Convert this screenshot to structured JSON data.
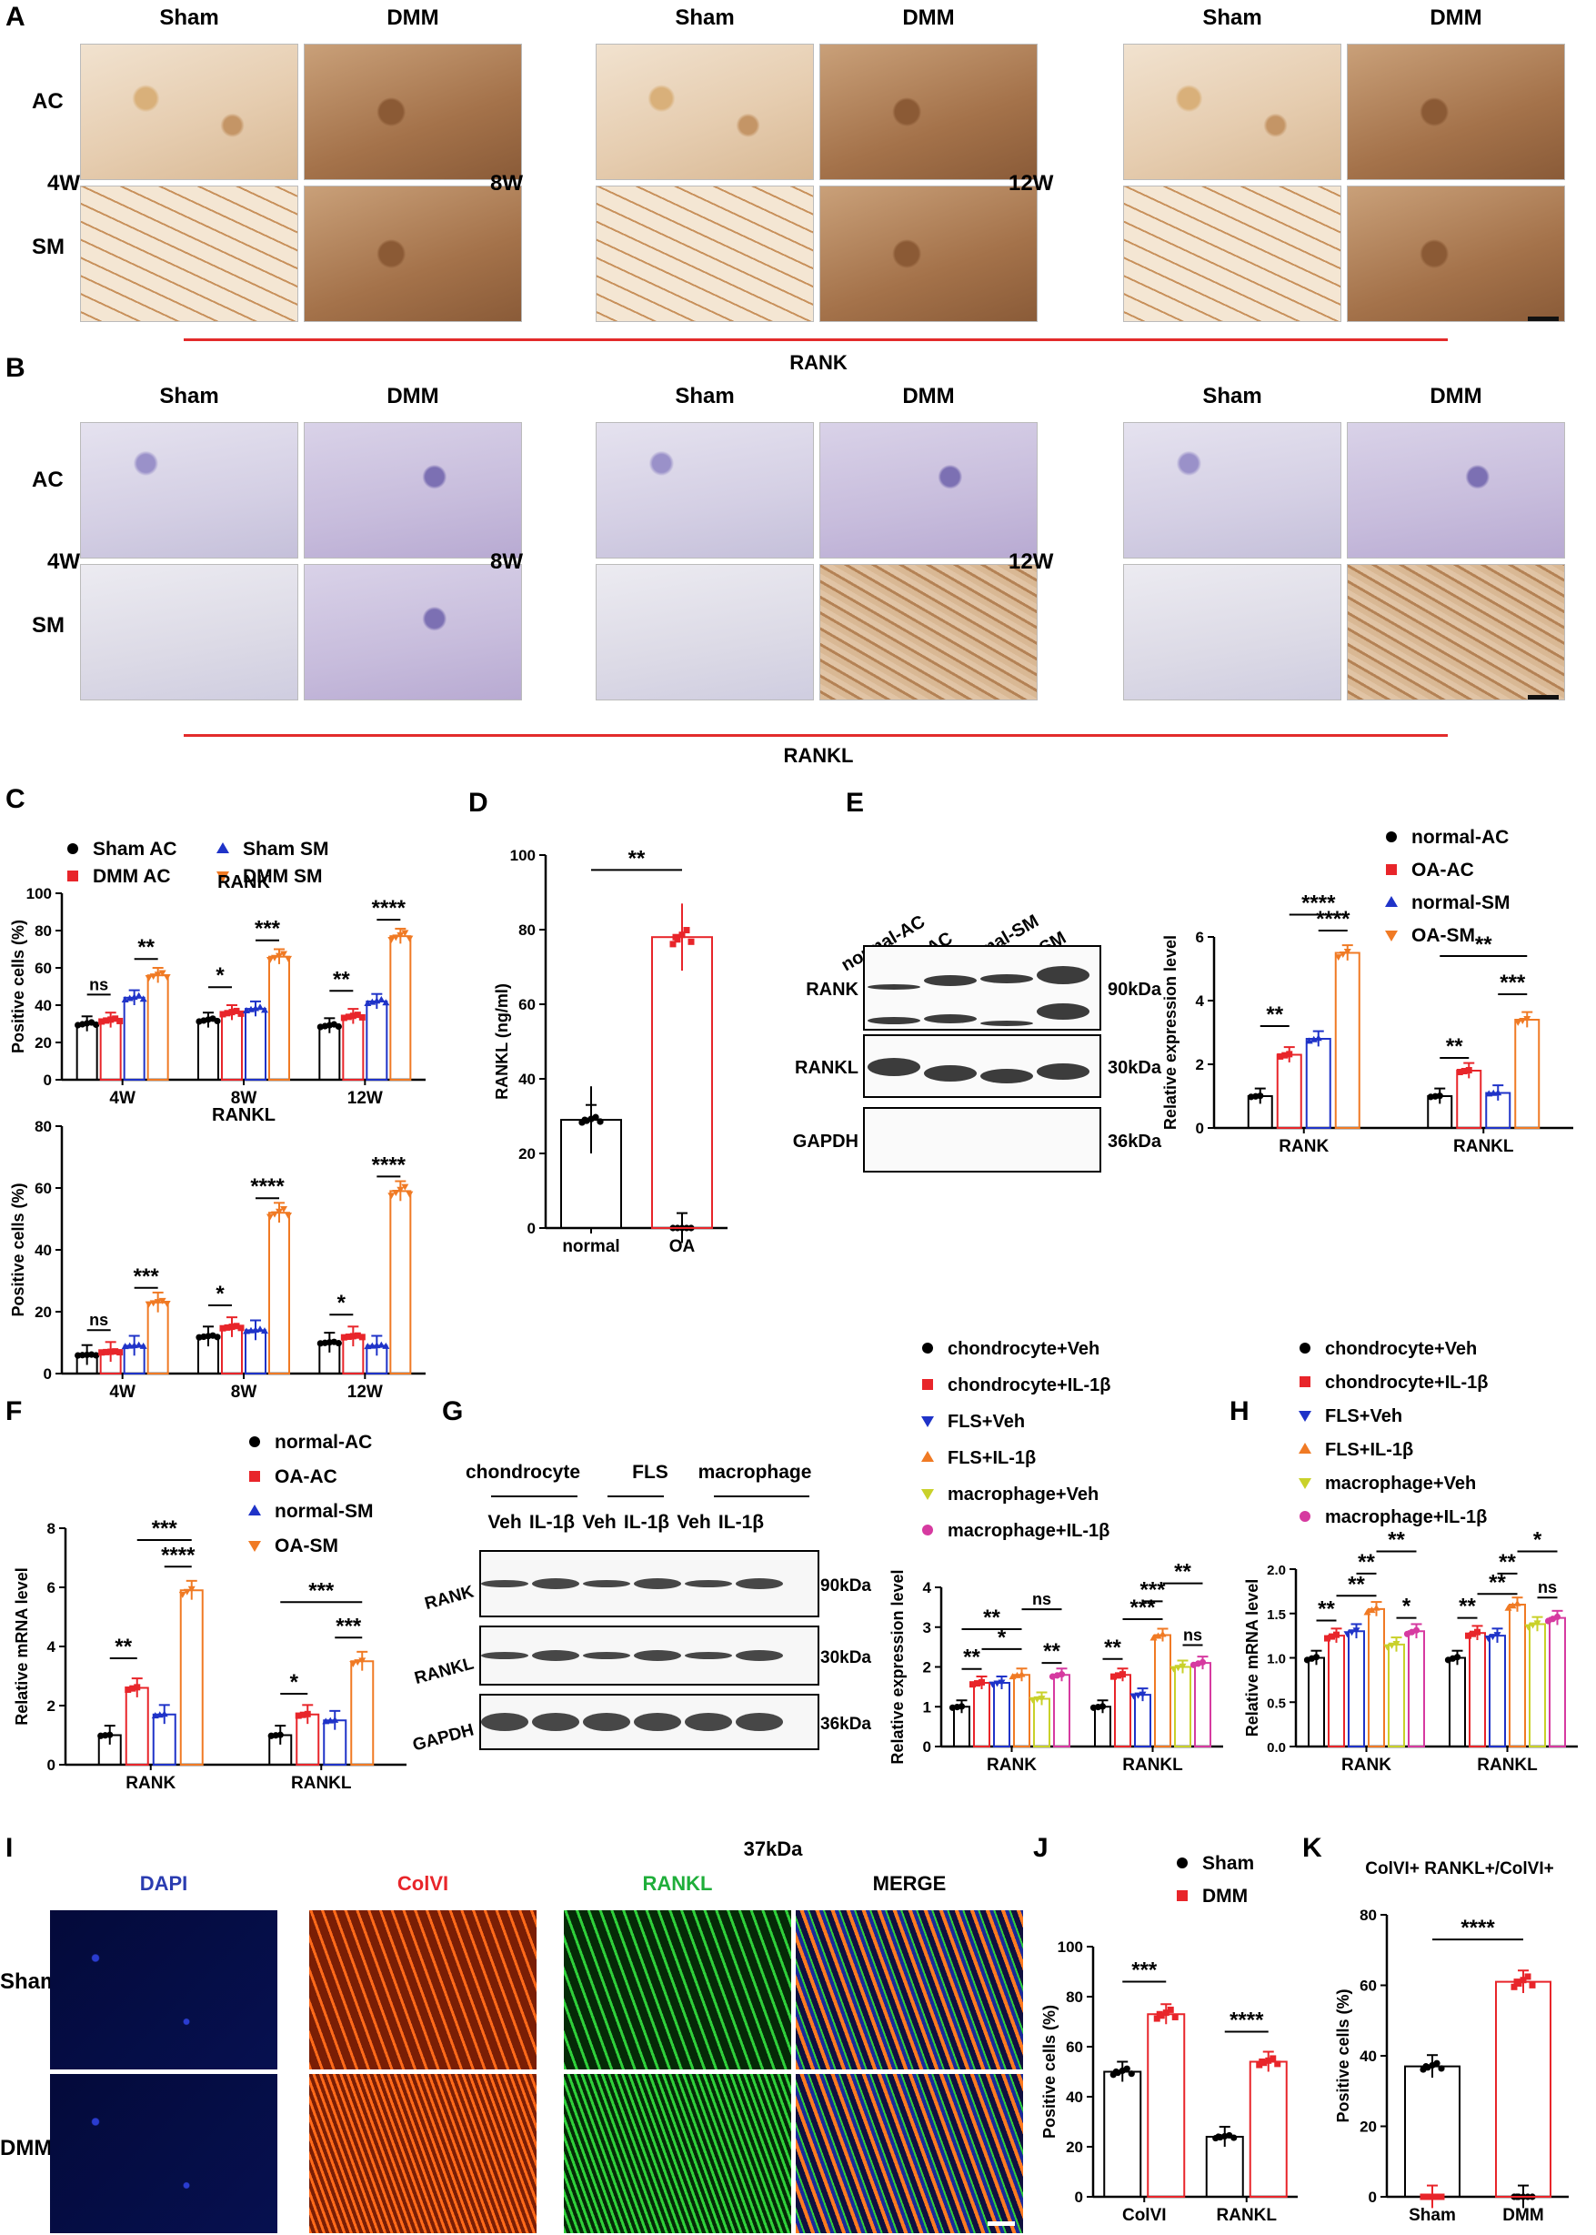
{
  "panels": {
    "A": "A",
    "B": "B",
    "C": "C",
    "D": "D",
    "E": "E",
    "F": "F",
    "G": "G",
    "H": "H",
    "I": "I",
    "J": "J",
    "K": "K"
  },
  "histology": {
    "col_headers": [
      "Sham",
      "DMM"
    ],
    "row_labels": [
      "AC",
      "SM"
    ],
    "timepoints": [
      "4W",
      "8W",
      "12W"
    ],
    "A_caption": "RANK",
    "B_caption": "RANKL"
  },
  "C": {
    "legend": [
      "Sham AC",
      "DMM AC",
      "Sham SM",
      "DMM SM"
    ],
    "ylabel": "Positive cells (%)",
    "categories": [
      "4W",
      "8W",
      "12W"
    ],
    "top": {
      "title": "RANK",
      "sig": [
        "ns",
        "**",
        "*",
        "***",
        "**",
        "****"
      ]
    },
    "bottom": {
      "title": "RANKL",
      "sig": [
        "ns",
        "***",
        "*",
        "****",
        "*",
        "****"
      ]
    }
  },
  "D": {
    "ylabel": "RANKL (ng/ml)",
    "categories": [
      "normal",
      "OA"
    ],
    "sig": "**"
  },
  "E": {
    "lanes": [
      "normal-AC",
      "OA-AC",
      "normal-SM",
      "OA-SM"
    ],
    "bands": [
      "RANK",
      "RANKL",
      "GAPDH"
    ],
    "kda": [
      "90kDa",
      "30kDa",
      "36kDa"
    ],
    "legend": [
      "normal-AC",
      "OA-AC",
      "normal-SM",
      "OA-SM"
    ],
    "ylabel": "Relative expression level",
    "categories": [
      "RANK",
      "RANKL"
    ],
    "sig": [
      "**",
      "****",
      "****",
      "**",
      "**",
      "***"
    ]
  },
  "F": {
    "legend": [
      "normal-AC",
      "OA-AC",
      "normal-SM",
      "OA-SM"
    ],
    "ylabel": "Relative mRNA level",
    "categories": [
      "RANK",
      "RANKL"
    ],
    "sig": [
      "**",
      "***",
      "****",
      "*",
      "***",
      "***"
    ]
  },
  "G": {
    "groups": [
      "chondrocyte",
      "FLS",
      "macrophage"
    ],
    "lanes": [
      "Veh",
      "IL-1β",
      "Veh",
      "IL-1β",
      "Veh",
      "IL-1β"
    ],
    "bands": [
      "RANK",
      "RANKL",
      "GAPDH"
    ],
    "kda": [
      "90kDa",
      "30kDa",
      "36kDa"
    ],
    "legend": [
      "chondrocyte+Veh",
      "chondrocyte+IL-1β",
      "FLS+Veh",
      "FLS+IL-1β",
      "macrophage+Veh",
      "macrophage+IL-1β"
    ],
    "ylabel": "Relative expression level",
    "categories": [
      "RANK",
      "RANKL"
    ],
    "sig": [
      "**",
      "*",
      "**",
      "ns",
      "**",
      "**",
      "***",
      "***",
      "**",
      "ns"
    ]
  },
  "H": {
    "legend": [
      "chondrocyte+Veh",
      "chondrocyte+IL-1β",
      "FLS+Veh",
      "FLS+IL-1β",
      "macrophage+Veh",
      "macrophage+IL-1β"
    ],
    "ylabel": "Relative mRNA level",
    "categories": [
      "RANK",
      "RANKL"
    ],
    "sig": [
      "**",
      "**",
      "**",
      "**",
      "*",
      "**",
      "**",
      "**",
      "*",
      "ns"
    ]
  },
  "I": {
    "channels": [
      "DAPI",
      "ColVI",
      "RANKL",
      "MERGE"
    ],
    "rows": [
      "Sham",
      "DMM"
    ],
    "top_note": "37kDa"
  },
  "J": {
    "legend": [
      "Sham",
      "DMM"
    ],
    "ylabel": "Positive cells (%)",
    "categories": [
      "ColVI",
      "RANKL"
    ],
    "sig": [
      "***",
      "****"
    ]
  },
  "K": {
    "title": "ColVI+ RANKL+/ColVI+",
    "ylabel": "Positive cells (%)",
    "categories": [
      "Sham",
      "DMM"
    ],
    "sig": "****"
  },
  "colors": {
    "black": "#000000",
    "red": "#e8252a",
    "blue": "#1f33c8",
    "orange": "#f07a24",
    "yellow": "#c9d12a",
    "magenta": "#d63aa0",
    "redline": "#e32b2b"
  },
  "chart_data": [
    {
      "type": "bar",
      "panel": "C-top",
      "title": "RANK",
      "ylabel": "Positive cells (%)",
      "ylim": [
        0,
        100
      ],
      "categories": [
        "4W",
        "8W",
        "12W"
      ],
      "series": [
        {
          "name": "Sham AC",
          "values": [
            30,
            32,
            29
          ]
        },
        {
          "name": "DMM AC",
          "values": [
            32,
            36,
            34
          ]
        },
        {
          "name": "Sham SM",
          "values": [
            44,
            38,
            42
          ]
        },
        {
          "name": "DMM SM",
          "values": [
            56,
            66,
            77
          ]
        }
      ]
    },
    {
      "type": "bar",
      "panel": "C-bottom",
      "title": "RANKL",
      "ylabel": "Positive cells (%)",
      "ylim": [
        0,
        80
      ],
      "categories": [
        "4W",
        "8W",
        "12W"
      ],
      "series": [
        {
          "name": "Sham AC",
          "values": [
            6,
            12,
            10
          ]
        },
        {
          "name": "DMM AC",
          "values": [
            7,
            15,
            12
          ]
        },
        {
          "name": "Sham SM",
          "values": [
            9,
            14,
            9
          ]
        },
        {
          "name": "DMM SM",
          "values": [
            23,
            52,
            59
          ]
        }
      ]
    },
    {
      "type": "bar",
      "panel": "D",
      "ylabel": "RANKL (ng/ml)",
      "ylim": [
        0,
        100
      ],
      "categories": [
        "normal",
        "OA"
      ],
      "values": [
        29,
        78
      ]
    },
    {
      "type": "bar",
      "panel": "E",
      "ylabel": "Relative expression level",
      "ylim": [
        0,
        6
      ],
      "categories": [
        "RANK",
        "RANKL"
      ],
      "series": [
        {
          "name": "normal-AC",
          "values": [
            1.0,
            1.0
          ]
        },
        {
          "name": "OA-AC",
          "values": [
            2.3,
            1.8
          ]
        },
        {
          "name": "normal-SM",
          "values": [
            2.8,
            1.1
          ]
        },
        {
          "name": "OA-SM",
          "values": [
            5.5,
            3.4
          ]
        }
      ]
    },
    {
      "type": "bar",
      "panel": "F",
      "ylabel": "Relative mRNA level",
      "ylim": [
        0,
        8
      ],
      "categories": [
        "RANK",
        "RANKL"
      ],
      "series": [
        {
          "name": "normal-AC",
          "values": [
            1.0,
            1.0
          ]
        },
        {
          "name": "OA-AC",
          "values": [
            2.6,
            1.7
          ]
        },
        {
          "name": "normal-SM",
          "values": [
            1.7,
            1.5
          ]
        },
        {
          "name": "OA-SM",
          "values": [
            5.9,
            3.5
          ]
        }
      ]
    },
    {
      "type": "bar",
      "panel": "G",
      "ylabel": "Relative expression level",
      "ylim": [
        0,
        4
      ],
      "categories": [
        "RANK",
        "RANKL"
      ],
      "series": [
        {
          "name": "chondrocyte+Veh",
          "values": [
            1.0,
            1.0
          ]
        },
        {
          "name": "chondrocyte+IL-1β",
          "values": [
            1.6,
            1.8
          ]
        },
        {
          "name": "FLS+Veh",
          "values": [
            1.6,
            1.3
          ]
        },
        {
          "name": "FLS+IL-1β",
          "values": [
            1.8,
            2.8
          ]
        },
        {
          "name": "macrophage+Veh",
          "values": [
            1.2,
            2.0
          ]
        },
        {
          "name": "macrophage+IL-1β",
          "values": [
            1.8,
            2.1
          ]
        }
      ]
    },
    {
      "type": "bar",
      "panel": "H",
      "ylabel": "Relative mRNA level",
      "ylim": [
        0,
        2.0
      ],
      "categories": [
        "RANK",
        "RANKL"
      ],
      "series": [
        {
          "name": "chondrocyte+Veh",
          "values": [
            1.0,
            1.0
          ]
        },
        {
          "name": "chondrocyte+IL-1β",
          "values": [
            1.25,
            1.28
          ]
        },
        {
          "name": "FLS+Veh",
          "values": [
            1.3,
            1.25
          ]
        },
        {
          "name": "FLS+IL-1β",
          "values": [
            1.55,
            1.6
          ]
        },
        {
          "name": "macrophage+Veh",
          "values": [
            1.15,
            1.38
          ]
        },
        {
          "name": "macrophage+IL-1β",
          "values": [
            1.3,
            1.45
          ]
        }
      ]
    },
    {
      "type": "bar",
      "panel": "J",
      "ylabel": "Positive cells (%)",
      "ylim": [
        0,
        100
      ],
      "categories": [
        "ColVI",
        "RANKL"
      ],
      "series": [
        {
          "name": "Sham",
          "values": [
            50,
            24
          ]
        },
        {
          "name": "DMM",
          "values": [
            73,
            54
          ]
        }
      ]
    },
    {
      "type": "bar",
      "panel": "K",
      "ylabel": "Positive cells (%)",
      "ylim": [
        0,
        80
      ],
      "categories": [
        "Sham",
        "DMM"
      ],
      "values": [
        37,
        61
      ]
    }
  ]
}
